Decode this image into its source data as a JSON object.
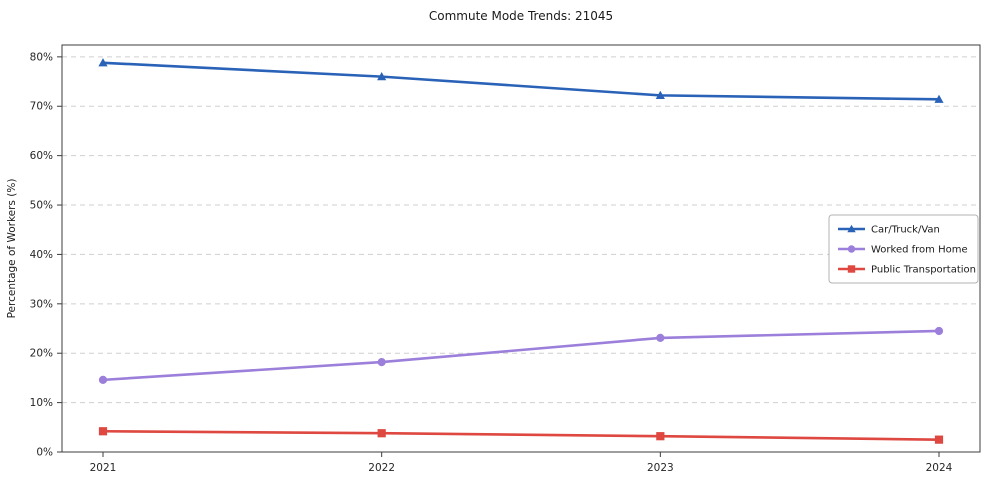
{
  "chart_data": {
    "type": "line",
    "title": "Commute Mode Trends: 21045",
    "xlabel": "",
    "ylabel": "Percentage of Workers (%)",
    "categories": [
      "2021",
      "2022",
      "2023",
      "2024"
    ],
    "series": [
      {
        "name": "Car/Truck/Van",
        "marker": "triangle",
        "color": "#2a62b8",
        "values": [
          78.8,
          76.0,
          72.2,
          71.4
        ]
      },
      {
        "name": "Worked from Home",
        "marker": "circle",
        "color": "#9b7fdb",
        "values": [
          14.6,
          18.2,
          23.1,
          24.5
        ]
      },
      {
        "name": "Public Transportation",
        "marker": "square",
        "color": "#de4840",
        "values": [
          4.2,
          3.8,
          3.2,
          2.5
        ]
      }
    ],
    "ylim": [
      0,
      82.4
    ],
    "yticks": [
      0,
      10,
      20,
      30,
      40,
      50,
      60,
      70,
      80
    ],
    "ytick_suffix": "%",
    "grid": true,
    "grid_color": "#cfcfcf",
    "axis_color": "#3c3c3c",
    "tick_label_color": "#262626",
    "legend_position": "middle-right",
    "legend_border_color": "#b3b3b3"
  }
}
